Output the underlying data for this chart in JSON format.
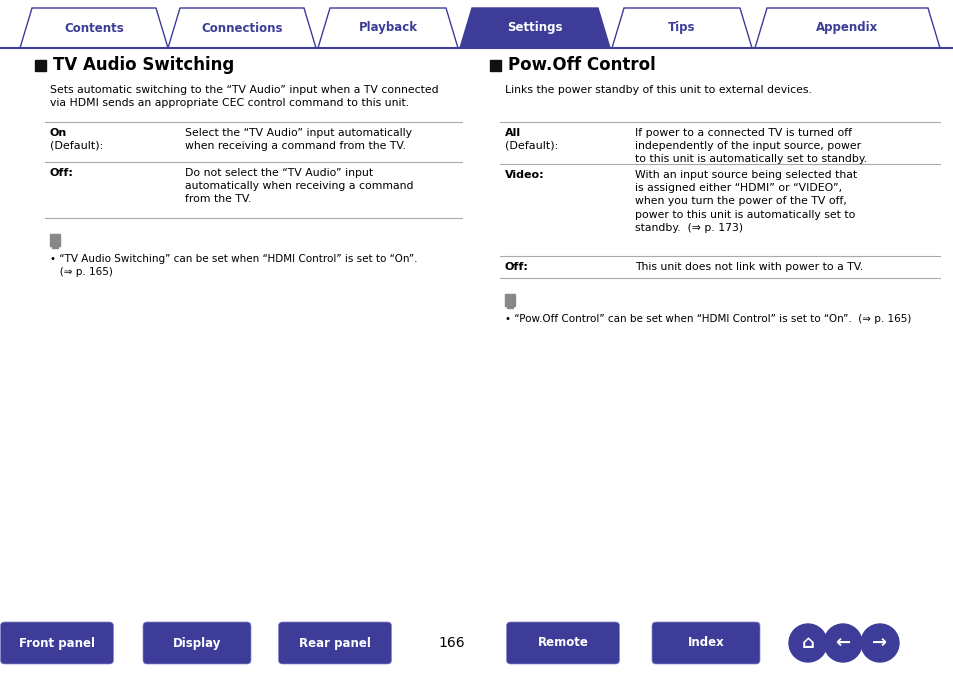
{
  "bg_color": "#ffffff",
  "tab_labels": [
    "Contents",
    "Connections",
    "Playback",
    "Settings",
    "Tips",
    "Appendix"
  ],
  "active_tab": 3,
  "tab_color_active": "#3d3d99",
  "tab_color_inactive": "#ffffff",
  "tab_text_color_active": "#ffffff",
  "tab_text_color_inactive": "#3d3d99",
  "tab_border_color": "#3d3d99",
  "section_sq_color": "#111111",
  "left_section_title": "TV Audio Switching",
  "right_section_title": "Pow.Off Control",
  "left_intro": "Sets automatic switching to the “TV Audio” input when a TV connected\nvia HDMI sends an appropriate CEC control command to this unit.",
  "right_intro": "Links the power standby of this unit to external devices.",
  "left_rows": [
    {
      "label": "On\n(Default):",
      "desc": "Select the “TV Audio” input automatically\nwhen receiving a command from the TV."
    },
    {
      "label": "Off:",
      "desc": "Do not select the “TV Audio” input\nautomatically when receiving a command\nfrom the TV."
    }
  ],
  "right_rows": [
    {
      "label": "All\n(Default):",
      "desc": "If power to a connected TV is turned off\nindependently of the input source, power\nto this unit is automatically set to standby."
    },
    {
      "label": "Video:",
      "desc": "With an input source being selected that\nis assigned either “HDMI” or “VIDEO”,\nwhen you turn the power of the TV off,\npower to this unit is automatically set to\nstandby.  (⇒ p. 173)"
    },
    {
      "label": "Off:",
      "desc": "This unit does not link with power to a TV."
    }
  ],
  "left_note": "• “TV Audio Switching” can be set when “HDMI Control” is set to “On”.\n   (⇒ p. 165)",
  "right_note": "• “Pow.Off Control” can be set when “HDMI Control” is set to “On”.  (⇒ p. 165)",
  "page_number": "166",
  "bottom_buttons": [
    "Front panel",
    "Display",
    "Rear panel",
    "Remote",
    "Index"
  ],
  "btn_color": "#3d3d99",
  "btn_text_color": "#ffffff",
  "separator_color": "#aaaaaa",
  "line_color": "#3d3d99"
}
